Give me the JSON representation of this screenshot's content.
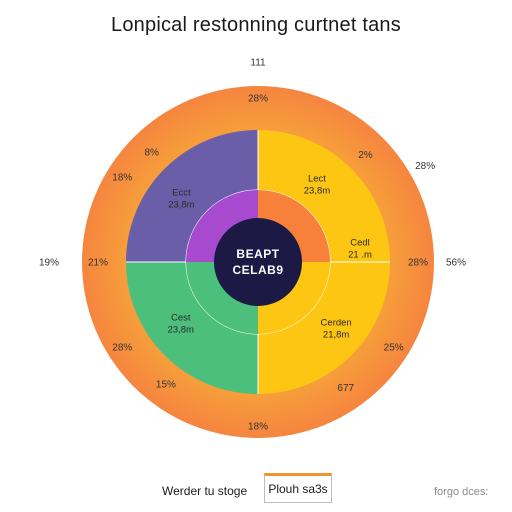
{
  "chart_data": {
    "type": "pie",
    "title": "Lonpical restonning curtnet tans",
    "outer_ring": {
      "color": "#f5853f",
      "labels": [
        {
          "text": "111",
          "angle": 0,
          "r": 200
        },
        {
          "text": "28%",
          "angle": 0,
          "r": 164
        },
        {
          "text": "2%",
          "angle": 45,
          "r": 152
        },
        {
          "text": "28%",
          "angle": 60,
          "r": 193
        },
        {
          "text": "28%",
          "angle": 90,
          "r": 160
        },
        {
          "text": "56%",
          "angle": 90,
          "r": 198
        },
        {
          "text": "25%",
          "angle": 122,
          "r": 160
        },
        {
          "text": "677",
          "angle": 145,
          "r": 153
        },
        {
          "text": "18%",
          "angle": 180,
          "r": 164
        },
        {
          "text": "15%",
          "angle": 217,
          "r": 153
        },
        {
          "text": "28%",
          "angle": 238,
          "r": 160
        },
        {
          "text": "21%",
          "angle": 270,
          "r": 160
        },
        {
          "text": "19%",
          "angle": 270,
          "r": 209
        },
        {
          "text": "18%",
          "angle": 302,
          "r": 160
        },
        {
          "text": "8%",
          "angle": 316,
          "r": 153
        }
      ]
    },
    "middle_ring": [
      {
        "label": "Lect",
        "value_text": "23,8m",
        "start": 0,
        "end": 180,
        "color": "#fcc613"
      },
      {
        "label": "Cedl",
        "value_text": "21 .m",
        "start": 0,
        "end": 0,
        "color": "#fcc613"
      },
      {
        "label": "Cerden",
        "value_text": "21,8m",
        "start": 0,
        "end": 0,
        "color": "#fcc613"
      },
      {
        "label": "Cest",
        "value_text": "23,8m",
        "start": 180,
        "end": 270,
        "color": "#4cbf7c"
      },
      {
        "label": "Ecct",
        "value_text": "23,8m",
        "start": 270,
        "end": 360,
        "color": "#6b5ea8"
      }
    ],
    "inner_ring": [
      {
        "start": 0,
        "end": 90,
        "color": "#f7803a"
      },
      {
        "start": 90,
        "end": 180,
        "color": "#fcc613"
      },
      {
        "start": 180,
        "end": 270,
        "color": "#4cbf7c"
      },
      {
        "start": 270,
        "end": 360,
        "color": "#a74ad0"
      }
    ],
    "center": {
      "line1": "BEAPT",
      "line2": "CELAB9",
      "color": "#1c1a45"
    }
  },
  "footer": {
    "left_label": "Werder tu stoge",
    "box_label": "Plouh sa3s",
    "right_label": "forgo dces:"
  }
}
